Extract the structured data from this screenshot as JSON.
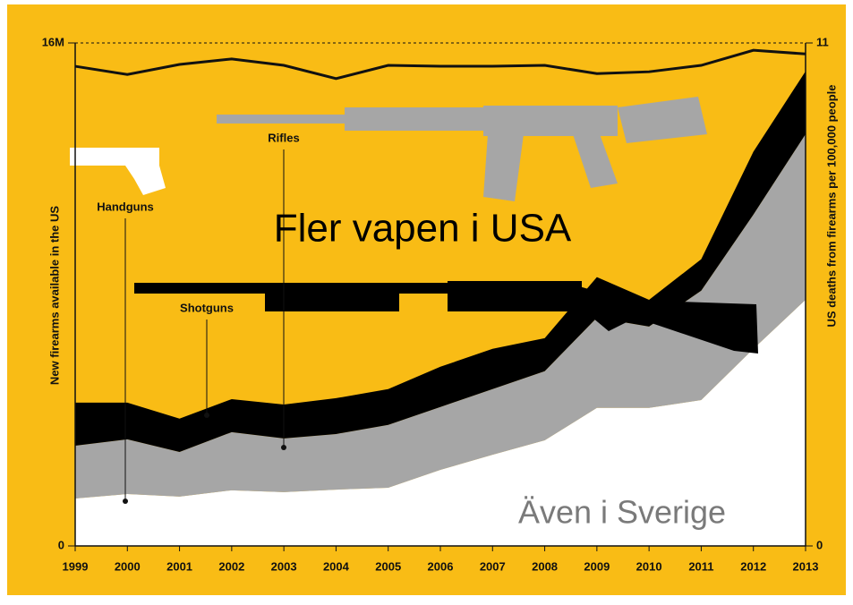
{
  "chart_data": {
    "type": "stacked_area",
    "categories": [
      "1999",
      "2000",
      "2001",
      "2002",
      "2003",
      "2004",
      "2005",
      "2006",
      "2007",
      "2008",
      "2009",
      "2010",
      "2011",
      "2012",
      "2013"
    ],
    "series": [
      {
        "name": "Handguns",
        "color": "#ffffff",
        "values": [
          1.51,
          1.65,
          1.57,
          1.77,
          1.71,
          1.79,
          1.85,
          2.42,
          2.9,
          3.36,
          4.39,
          4.39,
          4.64,
          6.27,
          7.83
        ]
      },
      {
        "name": "Rifles",
        "color": "#a6a6a6",
        "values": [
          1.68,
          1.74,
          1.42,
          1.85,
          1.71,
          1.77,
          2.0,
          2.0,
          2.09,
          2.2,
          2.87,
          2.59,
          3.48,
          4.27,
          5.27
        ]
      },
      {
        "name": "Shotguns",
        "color": "#000000",
        "values": [
          1.37,
          1.17,
          1.06,
          1.05,
          1.08,
          1.14,
          1.14,
          1.28,
          1.28,
          1.05,
          1.29,
          0.85,
          1.0,
          2.0,
          2.0
        ]
      }
    ],
    "line_series": {
      "color": "#111111",
      "axis": "y2",
      "values": [
        10.49,
        10.31,
        10.53,
        10.65,
        10.51,
        10.22,
        10.51,
        10.49,
        10.49,
        10.51,
        10.33,
        10.37,
        10.51,
        10.84,
        10.76
      ]
    },
    "ylabel": "New firearms available in the US",
    "y2label": "US deaths from firearms per 100,000 people",
    "ylim": [
      0,
      16
    ],
    "yticks": [
      0,
      {
        "value": 16,
        "label": "16M"
      }
    ],
    "y2lim": [
      0,
      11
    ],
    "y2ticks": [
      0,
      11
    ],
    "annotations": [
      "Fler vapen i USA",
      "Även i Sverige"
    ]
  }
}
